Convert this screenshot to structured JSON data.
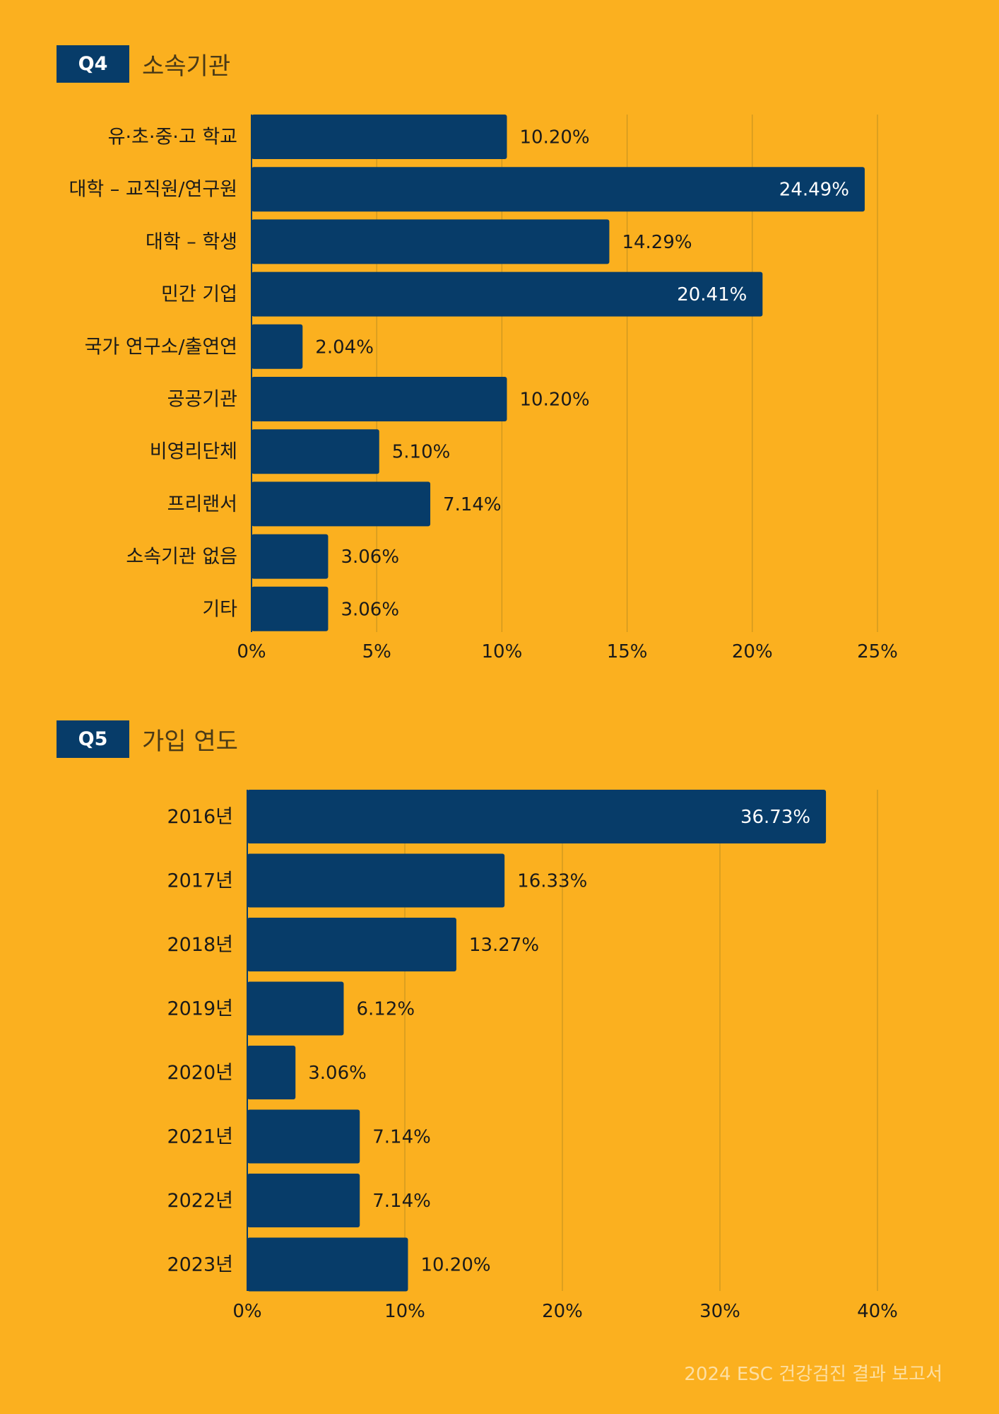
{
  "colors": {
    "background": "#FBB01F",
    "bar": "#073C69",
    "grid": "#C99520",
    "text": "#1A1A1A",
    "title": "#4A3A17",
    "inside_label": "#FFFFFF",
    "footer": "#FDDFA3"
  },
  "footer_text": "2024 ESC 건강검진 결과 보고서",
  "chart_data": [
    {
      "type": "bar",
      "orientation": "horizontal",
      "badge": "Q4",
      "title": "소속기관",
      "categories": [
        "유·초·중·고 학교",
        "대학 – 교직원/연구원",
        "대학 – 학생",
        "민간 기업",
        "국가 연구소/출연연",
        "공공기관",
        "비영리단체",
        "프리랜서",
        "소속기관 없음",
        "기타"
      ],
      "values": [
        10.2,
        24.49,
        14.29,
        20.41,
        2.04,
        10.2,
        5.1,
        7.14,
        3.06,
        3.06
      ],
      "value_labels": [
        "10.20%",
        "24.49%",
        "14.29%",
        "20.41%",
        "2.04%",
        "10.20%",
        "5.10%",
        "7.14%",
        "3.06%",
        "3.06%"
      ],
      "xlim": [
        0,
        25
      ],
      "xticks": [
        "0%",
        "5%",
        "10%",
        "15%",
        "20%",
        "25%"
      ],
      "grid": true
    },
    {
      "type": "bar",
      "orientation": "horizontal",
      "badge": "Q5",
      "title": "가입 연도",
      "categories": [
        "2016년",
        "2017년",
        "2018년",
        "2019년",
        "2020년",
        "2021년",
        "2022년",
        "2023년"
      ],
      "values": [
        36.73,
        16.33,
        13.27,
        6.12,
        3.06,
        7.14,
        7.14,
        10.2
      ],
      "value_labels": [
        "36.73%",
        "16.33%",
        "13.27%",
        "6.12%",
        "3.06%",
        "7.14%",
        "7.14%",
        "10.20%"
      ],
      "xlim": [
        0,
        40
      ],
      "xticks": [
        "0%",
        "10%",
        "20%",
        "30%",
        "40%"
      ],
      "grid": true
    }
  ]
}
